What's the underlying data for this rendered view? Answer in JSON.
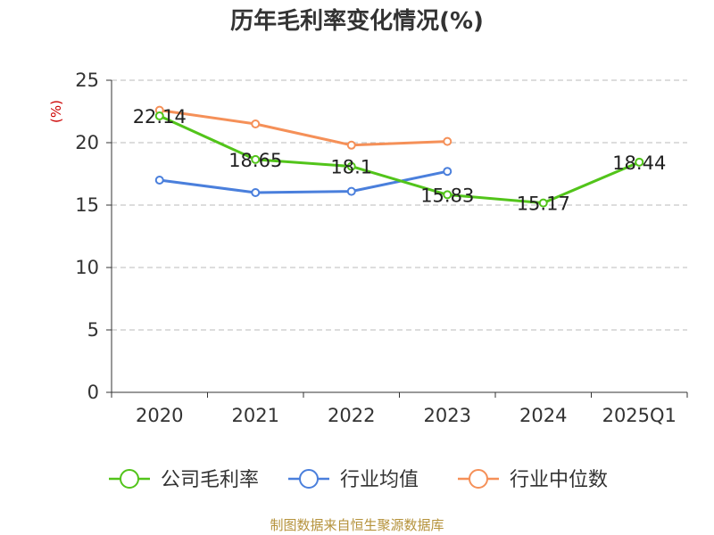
{
  "chart_data": {
    "type": "line",
    "title": "历年毛利率变化情况(%)",
    "ylabel": "(%)",
    "xlabel": "",
    "categories": [
      "2020",
      "2021",
      "2022",
      "2023",
      "2024",
      "2025Q1"
    ],
    "ylim": [
      0,
      25
    ],
    "yticks": [
      "0",
      "5",
      "10",
      "15",
      "20",
      "25"
    ],
    "grid": true,
    "legend_position": "bottom",
    "series": [
      {
        "name": "公司毛利率",
        "color": "#52c41a",
        "values": [
          22.14,
          18.65,
          18.1,
          15.83,
          15.17,
          18.44
        ],
        "labels": [
          "22.14",
          "18.65",
          "18.1",
          "15.83",
          "15.17",
          "18.44"
        ]
      },
      {
        "name": "行业均值",
        "color": "#4a7fdc",
        "values": [
          17.0,
          16.0,
          16.1,
          17.7,
          null,
          null
        ],
        "labels": []
      },
      {
        "name": "行业中位数",
        "color": "#f59058",
        "values": [
          22.6,
          21.5,
          19.8,
          20.1,
          null,
          null
        ],
        "labels": []
      }
    ],
    "source": "制图数据来自恒生聚源数据库"
  }
}
